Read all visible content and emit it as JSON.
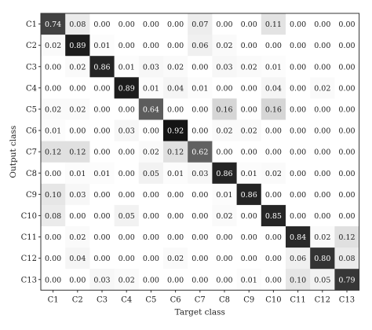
{
  "chart_data": {
    "type": "heatmap",
    "title": "",
    "xlabel": "Target class",
    "ylabel": "Output class",
    "x_categories": [
      "C1",
      "C2",
      "C3",
      "C4",
      "C5",
      "C6",
      "C7",
      "C8",
      "C9",
      "C10",
      "C11",
      "C12",
      "C13"
    ],
    "y_categories": [
      "C1",
      "C2",
      "C3",
      "C4",
      "C5",
      "C6",
      "C7",
      "C8",
      "C9",
      "C10",
      "C11",
      "C12",
      "C13"
    ],
    "value_range": [
      0,
      1
    ],
    "colormap": "white-to-black grayscale",
    "values": [
      [
        0.74,
        0.08,
        0.0,
        0.0,
        0.0,
        0.0,
        0.07,
        0.0,
        0.0,
        0.11,
        0.0,
        0.0,
        0.0
      ],
      [
        0.02,
        0.89,
        0.01,
        0.0,
        0.0,
        0.0,
        0.06,
        0.02,
        0.0,
        0.0,
        0.0,
        0.0,
        0.0
      ],
      [
        0.0,
        0.02,
        0.86,
        0.01,
        0.03,
        0.02,
        0.0,
        0.03,
        0.02,
        0.01,
        0.0,
        0.0,
        0.0
      ],
      [
        0.0,
        0.0,
        0.0,
        0.89,
        0.01,
        0.04,
        0.01,
        0.0,
        0.0,
        0.04,
        0.0,
        0.02,
        0.0
      ],
      [
        0.02,
        0.02,
        0.0,
        0.0,
        0.64,
        0.0,
        0.0,
        0.16,
        0.0,
        0.16,
        0.0,
        0.0,
        0.0
      ],
      [
        0.01,
        0.0,
        0.0,
        0.03,
        0.0,
        0.92,
        0.0,
        0.02,
        0.02,
        0.0,
        0.0,
        0.0,
        0.0
      ],
      [
        0.12,
        0.12,
        0.0,
        0.0,
        0.02,
        0.12,
        0.62,
        0.0,
        0.0,
        0.0,
        0.0,
        0.0,
        0.0
      ],
      [
        0.0,
        0.01,
        0.01,
        0.0,
        0.05,
        0.01,
        0.03,
        0.86,
        0.01,
        0.02,
        0.0,
        0.0,
        0.0
      ],
      [
        0.1,
        0.03,
        0.0,
        0.0,
        0.0,
        0.0,
        0.0,
        0.01,
        0.86,
        0.0,
        0.0,
        0.0,
        0.0
      ],
      [
        0.08,
        0.0,
        0.0,
        0.05,
        0.0,
        0.0,
        0.0,
        0.02,
        0.0,
        0.85,
        0.0,
        0.0,
        0.0
      ],
      [
        0.0,
        0.02,
        0.0,
        0.0,
        0.0,
        0.0,
        0.0,
        0.0,
        0.0,
        0.0,
        0.84,
        0.02,
        0.12
      ],
      [
        0.0,
        0.04,
        0.0,
        0.0,
        0.0,
        0.02,
        0.0,
        0.0,
        0.0,
        0.0,
        0.06,
        0.8,
        0.08
      ],
      [
        0.0,
        0.0,
        0.03,
        0.02,
        0.0,
        0.0,
        0.0,
        0.0,
        0.01,
        0.0,
        0.1,
        0.05,
        0.79
      ]
    ]
  }
}
